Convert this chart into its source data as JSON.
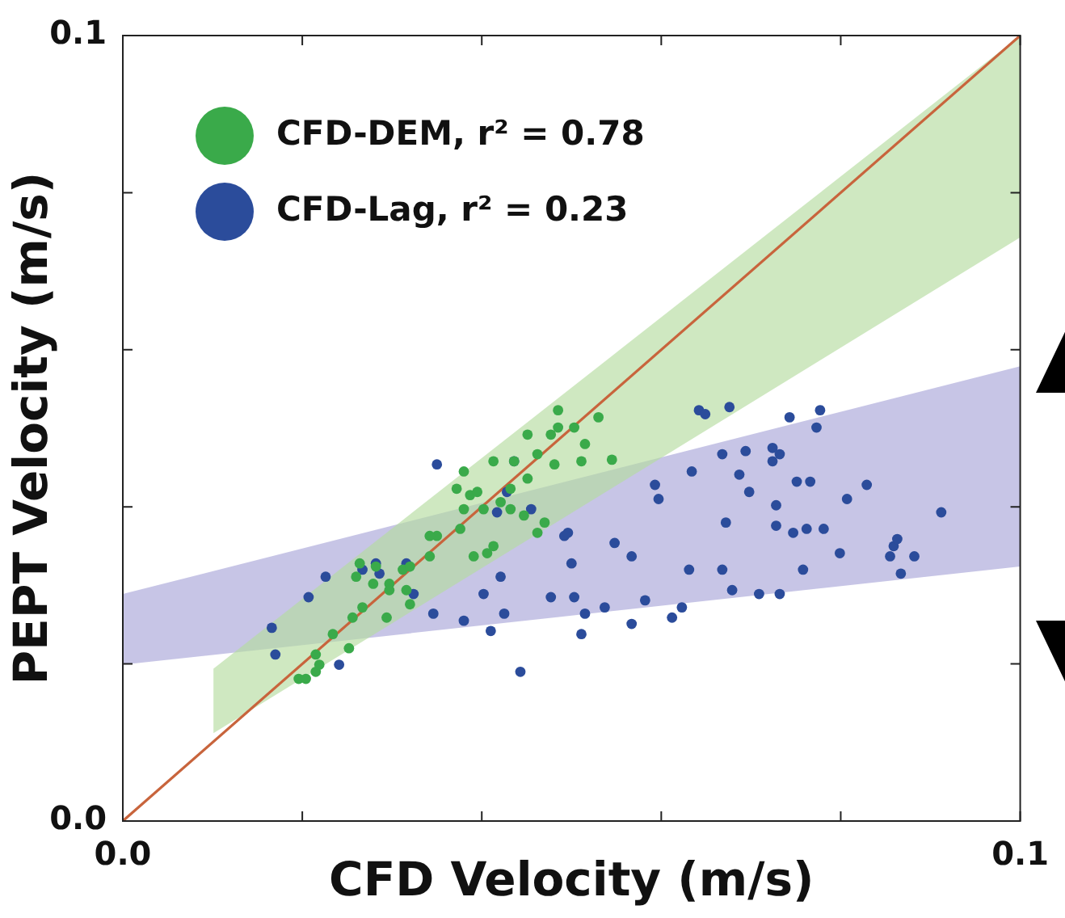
{
  "chart_data": {
    "type": "scatter",
    "xlabel": "CFD Velocity (m/s)",
    "ylabel": "PEPT Velocity (m/s)",
    "xlim": [
      0,
      0.1
    ],
    "ylim": [
      0,
      0.1
    ],
    "xticks": [
      {
        "value": 0,
        "label": "0.0"
      },
      {
        "value": 0.02,
        "label": null
      },
      {
        "value": 0.04,
        "label": null
      },
      {
        "value": 0.06,
        "label": null
      },
      {
        "value": 0.08,
        "label": null
      },
      {
        "value": 0.1,
        "label": "0.1"
      }
    ],
    "yticks": [
      {
        "value": 0,
        "label": "0.0"
      },
      {
        "value": 0.02,
        "label": null
      },
      {
        "value": 0.04,
        "label": null
      },
      {
        "value": 0.06,
        "label": null
      },
      {
        "value": 0.08,
        "label": null
      },
      {
        "value": 0.1,
        "label": "0.1"
      }
    ],
    "legend": "top left",
    "marker": "circle",
    "series": [
      {
        "name": "CFD-DEM, r² = 0.78",
        "color": "#3aaa4a",
        "x": [
          0.0196,
          0.0204,
          0.0215,
          0.0219,
          0.0215,
          0.0252,
          0.0234,
          0.0256,
          0.0267,
          0.0294,
          0.0279,
          0.026,
          0.0264,
          0.0282,
          0.0297,
          0.0312,
          0.0316,
          0.032,
          0.0342,
          0.035,
          0.0376,
          0.038,
          0.0372,
          0.0387,
          0.0395,
          0.0402,
          0.038,
          0.0413,
          0.0436,
          0.0451,
          0.0462,
          0.0477,
          0.0485,
          0.0485,
          0.0503,
          0.0515,
          0.053,
          0.0545,
          0.0511,
          0.0481,
          0.0451,
          0.0432,
          0.0421,
          0.0432,
          0.0447,
          0.0462,
          0.047,
          0.0391,
          0.0406,
          0.0413,
          0.0297,
          0.032,
          0.0342
        ],
        "values": [
          0.0181,
          0.0181,
          0.019,
          0.0199,
          0.0212,
          0.022,
          0.0238,
          0.0259,
          0.0272,
          0.0259,
          0.0302,
          0.0311,
          0.0328,
          0.0324,
          0.0302,
          0.032,
          0.0294,
          0.0324,
          0.0337,
          0.0363,
          0.0372,
          0.0397,
          0.0423,
          0.0415,
          0.0419,
          0.0397,
          0.0445,
          0.0458,
          0.0458,
          0.0492,
          0.0467,
          0.0492,
          0.0501,
          0.0523,
          0.0501,
          0.048,
          0.0514,
          0.046,
          0.0458,
          0.0454,
          0.0436,
          0.0423,
          0.0406,
          0.0397,
          0.0389,
          0.0367,
          0.038,
          0.0337,
          0.0341,
          0.035,
          0.0294,
          0.0276,
          0.0363
        ]
      },
      {
        "name": "CFD-Lag, r² = 0.23",
        "color": "#2b4c9b",
        "x": [
          0.0166,
          0.017,
          0.0207,
          0.0226,
          0.0241,
          0.0267,
          0.0282,
          0.0286,
          0.0316,
          0.0324,
          0.0346,
          0.035,
          0.038,
          0.0402,
          0.041,
          0.0421,
          0.0425,
          0.0436,
          0.0417,
          0.0428,
          0.0443,
          0.0455,
          0.0477,
          0.0492,
          0.0496,
          0.05,
          0.0503,
          0.0511,
          0.0515,
          0.0537,
          0.0548,
          0.0567,
          0.0567,
          0.0582,
          0.0593,
          0.0597,
          0.0612,
          0.0623,
          0.0631,
          0.0634,
          0.0642,
          0.0649,
          0.0668,
          0.0668,
          0.0672,
          0.0676,
          0.0679,
          0.0694,
          0.0698,
          0.0709,
          0.0724,
          0.0724,
          0.0728,
          0.0732,
          0.0732,
          0.0743,
          0.0751,
          0.0758,
          0.0762,
          0.0766,
          0.0773,
          0.0777,
          0.0781,
          0.0799,
          0.0807,
          0.0829,
          0.0855,
          0.0859,
          0.0863,
          0.0867,
          0.0882,
          0.0912,
          0.0687,
          0.0728,
          0.0747
        ],
        "values": [
          0.0246,
          0.0212,
          0.0285,
          0.0311,
          0.0199,
          0.032,
          0.0328,
          0.0315,
          0.0328,
          0.0289,
          0.0264,
          0.0454,
          0.0255,
          0.0289,
          0.0242,
          0.0311,
          0.0264,
          0.0458,
          0.0393,
          0.0419,
          0.019,
          0.0397,
          0.0285,
          0.0363,
          0.0367,
          0.0328,
          0.0285,
          0.0238,
          0.0264,
          0.0272,
          0.0354,
          0.0251,
          0.0337,
          0.0281,
          0.0428,
          0.041,
          0.0259,
          0.0272,
          0.032,
          0.0445,
          0.0523,
          0.0518,
          0.032,
          0.0467,
          0.038,
          0.0527,
          0.0294,
          0.0471,
          0.0419,
          0.0289,
          0.0475,
          0.0458,
          0.0376,
          0.0289,
          0.0467,
          0.0514,
          0.0432,
          0.032,
          0.0372,
          0.0432,
          0.0501,
          0.0523,
          0.0372,
          0.0341,
          0.041,
          0.0428,
          0.0337,
          0.035,
          0.0359,
          0.0315,
          0.0337,
          0.0393,
          0.0441,
          0.0402,
          0.0367
        ]
      },
      {
        "type": "line",
        "marker": "none",
        "color": "#c8643c",
        "x": [
          0,
          0.1
        ],
        "values": [
          0,
          0.1
        ]
      },
      {
        "type": "line",
        "marker": "none",
        "color": "#b5dba0",
        "x": [
          0.0101,
          0.1
        ],
        "values": [
          null,
          null
        ],
        "lower": [
          0.0112,
          0.0743
        ],
        "upper": [
          0.0194,
          0.1
        ]
      },
      {
        "type": "line",
        "marker": "none",
        "color": "#a9a6d8",
        "x": [
          0,
          0.1
        ],
        "values": [
          null,
          null
        ],
        "lower": [
          0.0199,
          0.0324
        ],
        "upper": [
          0.0289,
          0.0579
        ]
      }
    ]
  }
}
